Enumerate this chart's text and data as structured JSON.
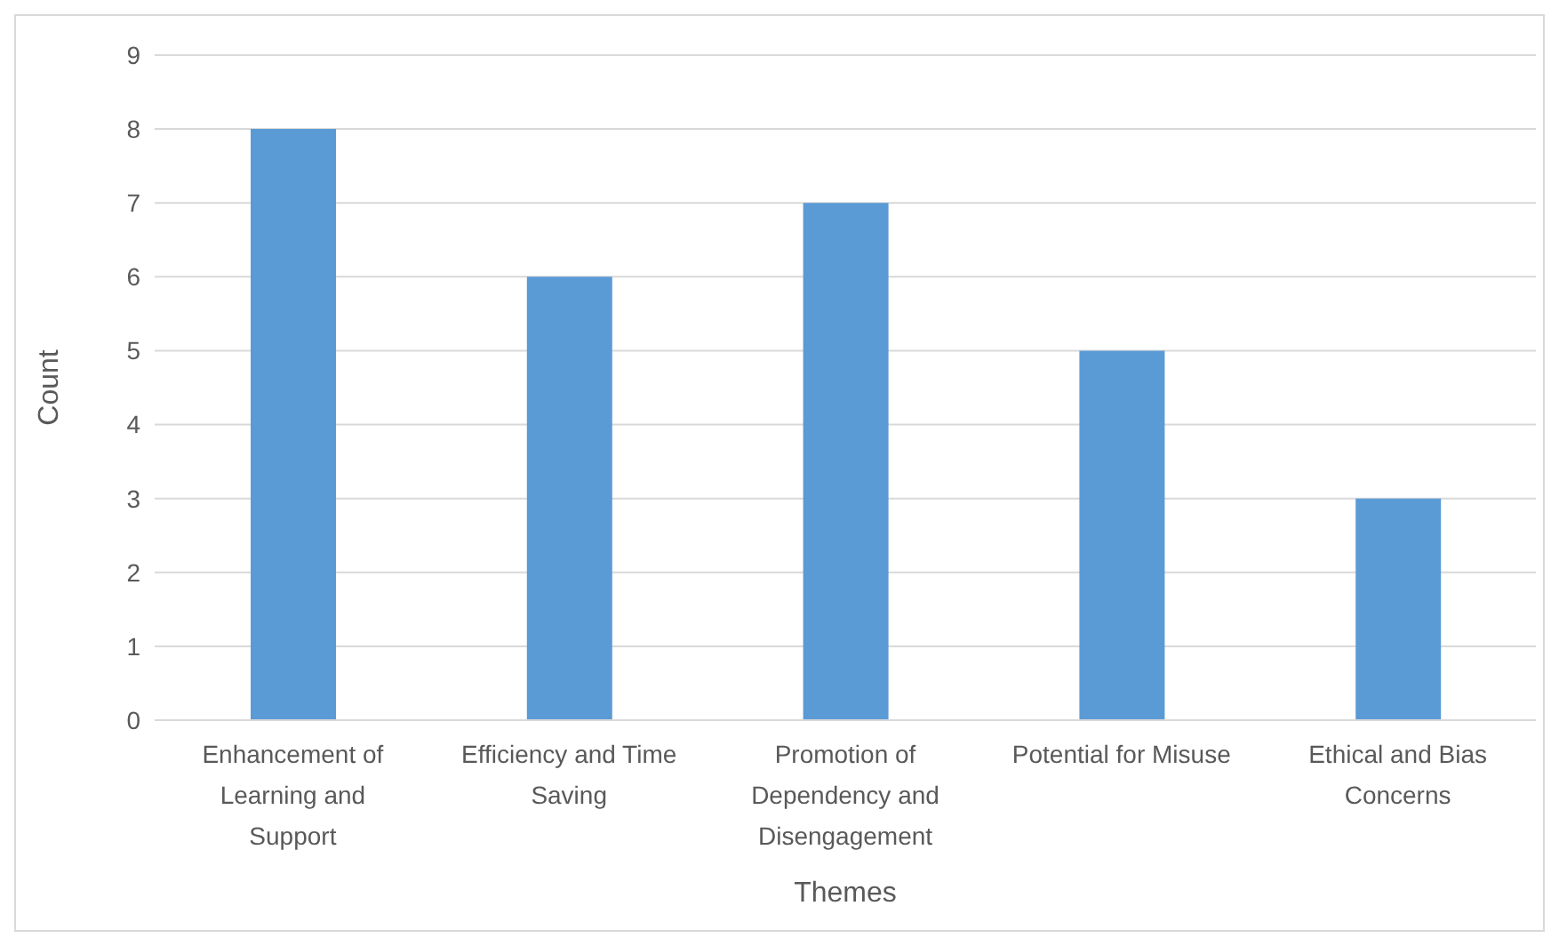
{
  "chart_data": {
    "type": "bar",
    "xlabel": "Themes",
    "ylabel": "Count",
    "categories": [
      "Enhancement of Learning and Support",
      "Efficiency and Time Saving",
      "Promotion of Dependency and Disengagement",
      "Potential for Misuse",
      "Ethical and Bias Concerns"
    ],
    "values": [
      8,
      6,
      7,
      5,
      3
    ],
    "color": "#5b9bd5",
    "ylim": [
      0,
      9
    ],
    "yticks": [
      0,
      1,
      2,
      3,
      4,
      5,
      6,
      7,
      8,
      9
    ],
    "grid": "y"
  }
}
